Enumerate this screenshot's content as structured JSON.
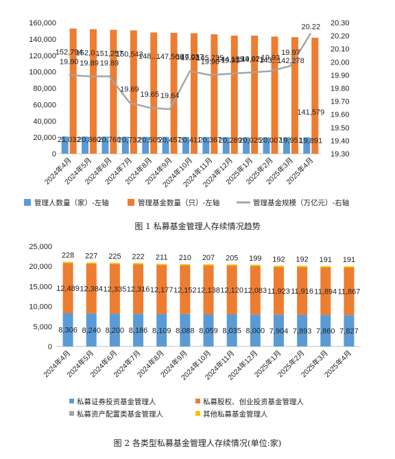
{
  "chart_data": [
    {
      "type": "bar",
      "categories": [
        "2024年4月",
        "2024年5月",
        "2024年6月",
        "2024年7月",
        "2024年8月",
        "2024年9月",
        "2024年10月",
        "2024年11月",
        "2024年12月",
        "2025年1月",
        "2025年2月",
        "2025年3月",
        "2025年4月"
      ],
      "series": [
        {
          "name": "管理人数量（家）-左轴",
          "type": "bar",
          "axis": "left",
          "color": "#5b9bd5",
          "values": [
            21032,
            20860,
            20768,
            20732,
            20505,
            20457,
            20411,
            20367,
            20289,
            20025,
            20007,
            19951,
            19891
          ],
          "labels": [
            "21,032",
            "20,860",
            "20,768",
            "20,732",
            "20,505",
            "20,457",
            "20,411",
            "20,367",
            "20,289",
            "20,025",
            "20,007",
            "19,951",
            "19,891"
          ]
        },
        {
          "name": "管理基金数量（只）-左轴",
          "type": "bar",
          "axis": "left",
          "color": "#ed7d31",
          "values": [
            152794,
            152000,
            151257,
            150543,
            148000,
            147566,
            147037,
            145735,
            144155,
            144071,
            143000,
            142278,
            141579
          ],
          "labels": [
            "152,794",
            "152,0…",
            "151,257",
            "150,543",
            "148,…",
            "147,566",
            "147,037",
            "145,735",
            "144,155",
            "144,071",
            "143,…",
            "142,278",
            "141,579"
          ]
        },
        {
          "name": "管理基金规模（万亿元）-右轴",
          "type": "line",
          "axis": "right",
          "color": "#a5a5a5",
          "values": [
            19.9,
            19.89,
            19.89,
            19.69,
            19.65,
            19.64,
            19.93,
            19.9,
            19.91,
            19.92,
            19.93,
            19.97,
            20.22
          ],
          "labels": [
            "19.90",
            "19.89",
            "19.89",
            "19.69",
            "19.65",
            "19.64",
            "19.93",
            "19.90",
            "19.91",
            "19.92",
            "19.93",
            "19.97",
            "20.22"
          ]
        }
      ],
      "y_left": {
        "min": 0,
        "max": 160000,
        "ticks": [
          "0",
          "20,000",
          "40,000",
          "60,000",
          "80,000",
          "100,000",
          "120,000",
          "140,000",
          "160,000"
        ]
      },
      "y_right": {
        "min": 19.3,
        "max": 20.3,
        "ticks": [
          "19.30",
          "19.40",
          "19.50",
          "19.60",
          "19.70",
          "19.80",
          "19.90",
          "20.00",
          "20.10",
          "20.20",
          "20.30"
        ]
      },
      "legend": [
        "管理人数量（家）-左轴",
        "管理基金数量（只）-左轴",
        "管理基金规模（万亿元）-右轴"
      ],
      "legend_position": "bottom",
      "caption": "图 1  私募基金管理人存续情况趋势",
      "grid": false
    },
    {
      "type": "bar",
      "stacked": true,
      "categories": [
        "2024年4月",
        "2024年5月",
        "2024年6月",
        "2024年7月",
        "2024年8月",
        "2024年9月",
        "2024年10月",
        "2024年11月",
        "2024年12月",
        "2025年1月",
        "2025年2月",
        "2025年3月",
        "2025年4月"
      ],
      "series": [
        {
          "name": "私募证券投资基金管理人",
          "color": "#5b9bd5",
          "values": [
            8306,
            8240,
            8200,
            8186,
            8109,
            8088,
            8059,
            8035,
            8000,
            7904,
            7893,
            7860,
            7827
          ],
          "labels": [
            "8,306",
            "8,240",
            "8,200",
            "8,186",
            "8,109",
            "8,088",
            "8,059",
            "8,035",
            "8,000",
            "7,904",
            "7,893",
            "7,860",
            "7,827"
          ]
        },
        {
          "name": "私募股权、创业投资基金管理人",
          "color": "#ed7d31",
          "values": [
            12489,
            12384,
            12335,
            12316,
            12177,
            12152,
            12138,
            12120,
            12083,
            11923,
            11916,
            11894,
            11867
          ],
          "labels": [
            "12,489",
            "12,384",
            "12,335",
            "12,316",
            "12,177",
            "12,152",
            "12,138",
            "12,120",
            "12,083",
            "11,923",
            "11,916",
            "11,894",
            "11,867"
          ]
        },
        {
          "name": "私募资产配置类基金管理人",
          "color": "#a5a5a5",
          "values": [
            9,
            9,
            9,
            9,
            9,
            9,
            9,
            9,
            9,
            9,
            9,
            9,
            9
          ]
        },
        {
          "name": "其他私募基金管理人",
          "color": "#ffc000",
          "values": [
            228,
            227,
            225,
            222,
            211,
            210,
            207,
            205,
            199,
            192,
            192,
            191,
            191
          ],
          "labels": [
            "228",
            "227",
            "225",
            "222",
            "211",
            "210",
            "207",
            "205",
            "199",
            "192",
            "192",
            "191",
            "191"
          ]
        }
      ],
      "y": {
        "min": 0,
        "max": 25000,
        "ticks": [
          "0",
          "5,000",
          "10,000",
          "15,000",
          "20,000",
          "25,000"
        ]
      },
      "legend": [
        "私募证券投资基金管理人",
        "私募股权、创业投资基金管理人",
        "私募资产配置类基金管理人",
        "其他私募基金管理人"
      ],
      "legend_position": "bottom",
      "caption": "图 2  各类型私募基金管理人存续情况(单位:家)",
      "grid": false
    }
  ]
}
